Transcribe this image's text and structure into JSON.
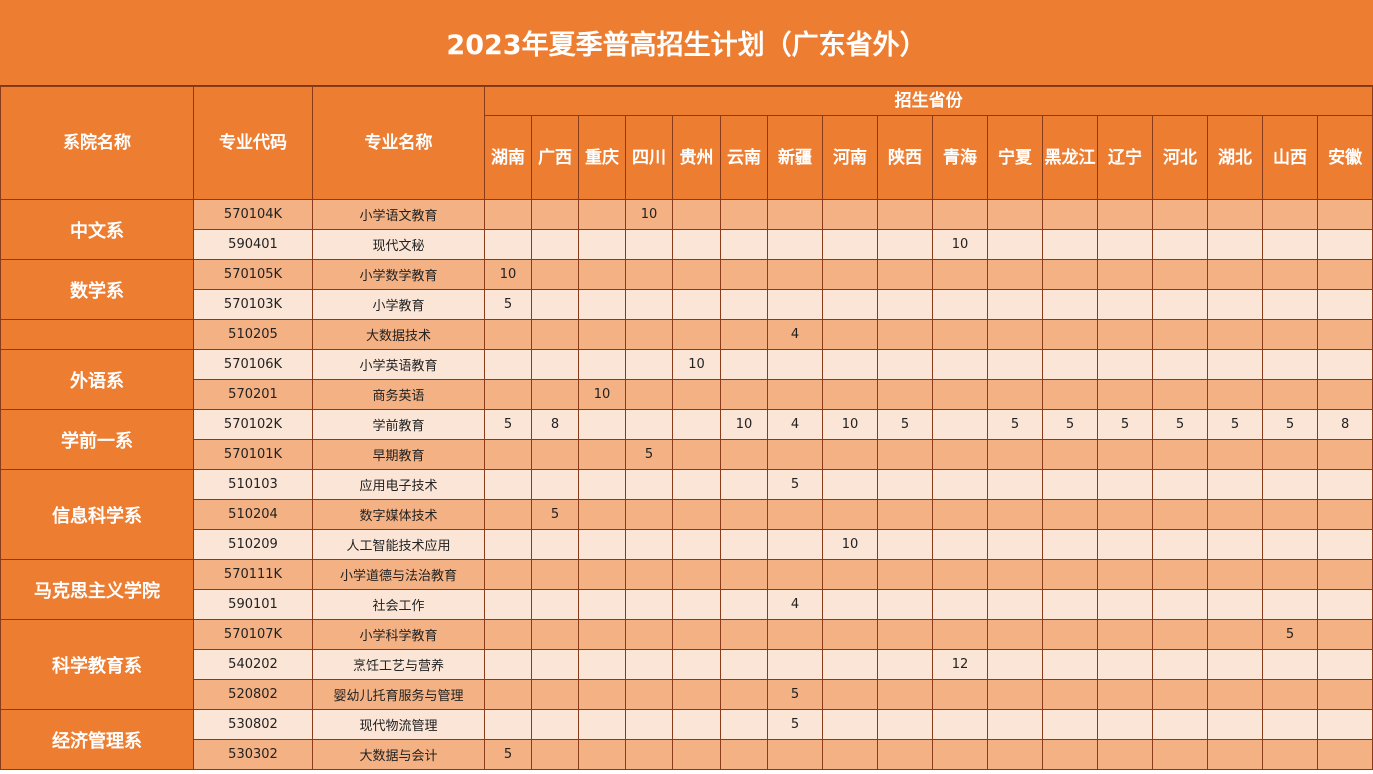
{
  "title": "2023年夏季普高招生计划（广东省外）",
  "headers": {
    "department": "系院名称",
    "code": "专业代码",
    "major": "专业名称",
    "provinces_group": "招生省份",
    "provinces": [
      "湖南",
      "广西",
      "重庆",
      "四川",
      "贵州",
      "云南",
      "新疆",
      "河南",
      "陕西",
      "青海",
      "宁夏",
      "黑龙江",
      "辽宁",
      "河北",
      "湖北",
      "山西",
      "安徽"
    ]
  },
  "departments": [
    {
      "name": "中文系",
      "rowspan": 2
    },
    {
      "name": "数学系",
      "rowspan": 2
    },
    {
      "name": "",
      "rowspan": 1
    },
    {
      "name": "外语系",
      "rowspan": 2
    },
    {
      "name": "学前一系",
      "rowspan": 2
    },
    {
      "name": "信息科学系",
      "rowspan": 3
    },
    {
      "name": "马克思主义学院",
      "rowspan": 2
    },
    {
      "name": "科学教育系",
      "rowspan": 3
    },
    {
      "name": "经济管理系",
      "rowspan": 2
    }
  ],
  "rows": [
    {
      "code": "570104K",
      "major": "小学语文教育",
      "values": [
        "",
        "",
        "",
        "10",
        "",
        "",
        "",
        "",
        "",
        "",
        "",
        "",
        "",
        "",
        "",
        "",
        ""
      ]
    },
    {
      "code": "590401",
      "major": "现代文秘",
      "values": [
        "",
        "",
        "",
        "",
        "",
        "",
        "",
        "",
        "",
        "10",
        "",
        "",
        "",
        "",
        "",
        "",
        ""
      ]
    },
    {
      "code": "570105K",
      "major": "小学数学教育",
      "values": [
        "10",
        "",
        "",
        "",
        "",
        "",
        "",
        "",
        "",
        "",
        "",
        "",
        "",
        "",
        "",
        "",
        ""
      ]
    },
    {
      "code": "570103K",
      "major": "小学教育",
      "values": [
        "5",
        "",
        "",
        "",
        "",
        "",
        "",
        "",
        "",
        "",
        "",
        "",
        "",
        "",
        "",
        "",
        ""
      ]
    },
    {
      "code": "510205",
      "major": "大数据技术",
      "values": [
        "",
        "",
        "",
        "",
        "",
        "",
        "4",
        "",
        "",
        "",
        "",
        "",
        "",
        "",
        "",
        "",
        ""
      ]
    },
    {
      "code": "570106K",
      "major": "小学英语教育",
      "values": [
        "",
        "",
        "",
        "",
        "10",
        "",
        "",
        "",
        "",
        "",
        "",
        "",
        "",
        "",
        "",
        "",
        ""
      ]
    },
    {
      "code": "570201",
      "major": "商务英语",
      "values": [
        "",
        "",
        "10",
        "",
        "",
        "",
        "",
        "",
        "",
        "",
        "",
        "",
        "",
        "",
        "",
        "",
        ""
      ]
    },
    {
      "code": "570102K",
      "major": "学前教育",
      "values": [
        "5",
        "8",
        "",
        "",
        "",
        "10",
        "4",
        "10",
        "5",
        "",
        "5",
        "5",
        "5",
        "5",
        "5",
        "5",
        "8"
      ]
    },
    {
      "code": "570101K",
      "major": "早期教育",
      "values": [
        "",
        "",
        "",
        "5",
        "",
        "",
        "",
        "",
        "",
        "",
        "",
        "",
        "",
        "",
        "",
        "",
        ""
      ]
    },
    {
      "code": "510103",
      "major": "应用电子技术",
      "values": [
        "",
        "",
        "",
        "",
        "",
        "",
        "5",
        "",
        "",
        "",
        "",
        "",
        "",
        "",
        "",
        "",
        ""
      ]
    },
    {
      "code": "510204",
      "major": "数字媒体技术",
      "values": [
        "",
        "5",
        "",
        "",
        "",
        "",
        "",
        "",
        "",
        "",
        "",
        "",
        "",
        "",
        "",
        "",
        ""
      ]
    },
    {
      "code": "510209",
      "major": "人工智能技术应用",
      "values": [
        "",
        "",
        "",
        "",
        "",
        "",
        "",
        "10",
        "",
        "",
        "",
        "",
        "",
        "",
        "",
        "",
        ""
      ]
    },
    {
      "code": "570111K",
      "major": "小学道德与法治教育",
      "values": [
        "",
        "",
        "",
        "",
        "",
        "",
        "",
        "",
        "",
        "",
        "",
        "",
        "",
        "",
        "",
        "",
        ""
      ]
    },
    {
      "code": "590101",
      "major": "社会工作",
      "values": [
        "",
        "",
        "",
        "",
        "",
        "",
        "4",
        "",
        "",
        "",
        "",
        "",
        "",
        "",
        "",
        "",
        ""
      ]
    },
    {
      "code": "570107K",
      "major": "小学科学教育",
      "values": [
        "",
        "",
        "",
        "",
        "",
        "",
        "",
        "",
        "",
        "",
        "",
        "",
        "",
        "",
        "",
        "5",
        ""
      ]
    },
    {
      "code": "540202",
      "major": "烹饪工艺与营养",
      "values": [
        "",
        "",
        "",
        "",
        "",
        "",
        "",
        "",
        "",
        "12",
        "",
        "",
        "",
        "",
        "",
        "",
        ""
      ]
    },
    {
      "code": "520802",
      "major": "婴幼儿托育服务与管理",
      "values": [
        "",
        "",
        "",
        "",
        "",
        "",
        "5",
        "",
        "",
        "",
        "",
        "",
        "",
        "",
        "",
        "",
        ""
      ]
    },
    {
      "code": "530802",
      "major": "现代物流管理",
      "values": [
        "",
        "",
        "",
        "",
        "",
        "",
        "5",
        "",
        "",
        "",
        "",
        "",
        "",
        "",
        "",
        "",
        ""
      ]
    },
    {
      "code": "530302",
      "major": "大数据与会计",
      "values": [
        "5",
        "",
        "",
        "",
        "",
        "",
        "",
        "",
        "",
        "",
        "",
        "",
        "",
        "",
        "",
        "",
        ""
      ]
    }
  ]
}
